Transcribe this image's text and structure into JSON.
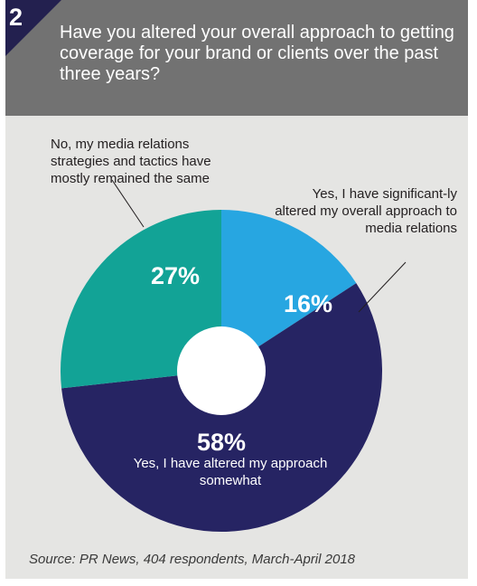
{
  "badge": "2",
  "question": "Have you altered your overall approach to getting coverage for your brand or clients over the past three years?",
  "source": "Source: PR News, 404 respondents, March-April 2018",
  "colors": {
    "header": "#727272",
    "panel": "#e5e5e3",
    "badge": "#23204f"
  },
  "chart_data": {
    "type": "pie",
    "style": "donut",
    "slices": [
      {
        "id": "significant",
        "value": 16,
        "value_label": "16%",
        "label": "Yes, I have significant-ly altered my overall approach to media relations",
        "color": "#27a6e1"
      },
      {
        "id": "somewhat",
        "value": 58,
        "value_label": "58%",
        "label": "Yes, I have altered my approach somewhat",
        "color": "#262463"
      },
      {
        "id": "same",
        "value": 27,
        "value_label": "27%",
        "label": "No, my media relations strategies and tactics have mostly remained the same",
        "color": "#12a396"
      }
    ]
  }
}
